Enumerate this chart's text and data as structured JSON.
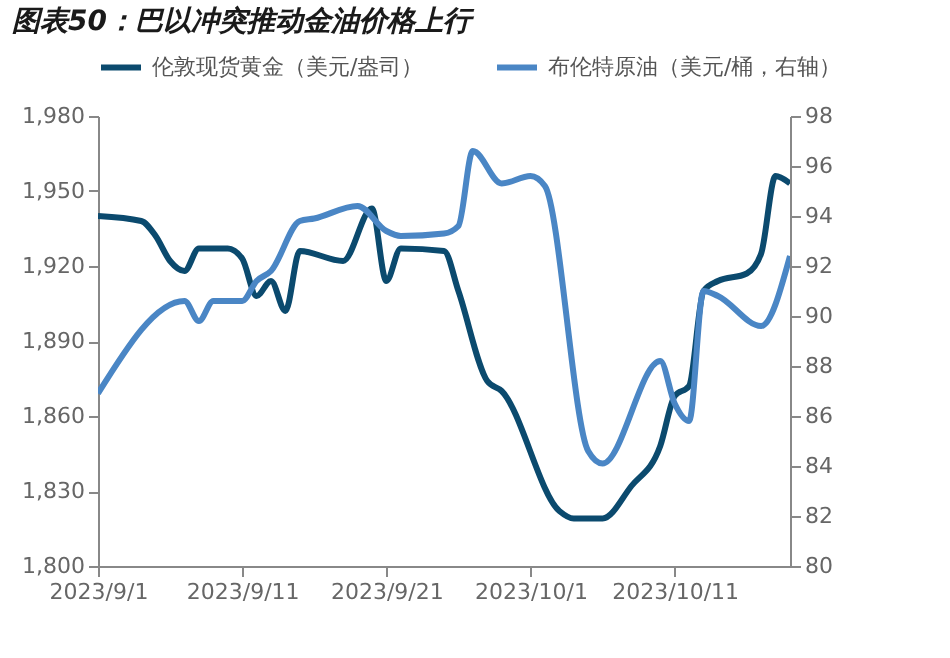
{
  "chart_data": {
    "type": "line",
    "title": "图表50：巴以冲突推动金油价格上行",
    "xlim": [
      "2023-09-01",
      "2023-10-19"
    ],
    "xticks": [
      {
        "value": "2023-09-01",
        "label": "2023/9/1"
      },
      {
        "value": "2023-09-11",
        "label": "2023/9/11"
      },
      {
        "value": "2023-09-21",
        "label": "2023/9/21"
      },
      {
        "value": "2023-10-01",
        "label": "2023/10/1"
      },
      {
        "value": "2023-10-11",
        "label": "2023/10/11"
      }
    ],
    "ylim": [
      1800,
      1980
    ],
    "yticks": [
      {
        "value": 1800,
        "label": "1,800"
      },
      {
        "value": 1830,
        "label": "1,830"
      },
      {
        "value": 1860,
        "label": "1,860"
      },
      {
        "value": 1890,
        "label": "1,890"
      },
      {
        "value": 1920,
        "label": "1,920"
      },
      {
        "value": 1950,
        "label": "1,950"
      },
      {
        "value": 1980,
        "label": "1,980"
      }
    ],
    "y2lim": [
      80,
      98
    ],
    "y2ticks": [
      80,
      82,
      84,
      86,
      88,
      90,
      92,
      94,
      96,
      98
    ],
    "grid": false,
    "legend": "top",
    "line_style": "solid",
    "series": [
      {
        "name": "伦敦现货黄金（美元/盎司）",
        "color": "#0b4a6e",
        "x": [
          "2023-09-01",
          "2023-09-04",
          "2023-09-05",
          "2023-09-06",
          "2023-09-07",
          "2023-09-08",
          "2023-09-10",
          "2023-09-11",
          "2023-09-12",
          "2023-09-13",
          "2023-09-14",
          "2023-09-15",
          "2023-09-18",
          "2023-09-20",
          "2023-09-21",
          "2023-09-22",
          "2023-09-25",
          "2023-09-26",
          "2023-09-28",
          "2023-09-29",
          "2023-10-03",
          "2023-10-04",
          "2023-10-06",
          "2023-10-08",
          "2023-10-10",
          "2023-10-11",
          "2023-10-12",
          "2023-10-13",
          "2023-10-14",
          "2023-10-16",
          "2023-10-17",
          "2023-10-18",
          "2023-10-19"
        ],
        "values": [
          1940,
          1938,
          1932,
          1922,
          1918,
          1927,
          1927,
          1923,
          1908,
          1914,
          1902,
          1926,
          1922,
          1943,
          1914,
          1927,
          1926,
          1910,
          1874,
          1870,
          1822,
          1819,
          1819,
          1832,
          1848,
          1868,
          1872,
          1910,
          1914,
          1917,
          1925,
          1956,
          1953
        ]
      },
      {
        "name": "布伦特原油（美元/桶，右轴）",
        "color": "#4a86c5",
        "axis": "y2",
        "x": [
          "2023-09-01",
          "2023-09-07",
          "2023-09-08",
          "2023-09-09",
          "2023-09-11",
          "2023-09-12",
          "2023-09-13",
          "2023-09-15",
          "2023-09-16",
          "2023-09-19",
          "2023-09-21",
          "2023-09-22",
          "2023-09-25",
          "2023-09-26",
          "2023-09-27",
          "2023-09-29",
          "2023-10-01",
          "2023-10-02",
          "2023-10-05",
          "2023-10-06",
          "2023-10-10",
          "2023-10-11",
          "2023-10-12",
          "2023-10-13",
          "2023-10-14",
          "2023-10-17",
          "2023-10-19"
        ],
        "values": [
          86.9,
          90.6,
          89.8,
          90.6,
          90.6,
          91.4,
          91.8,
          93.8,
          93.9,
          94.4,
          93.4,
          93.2,
          93.3,
          93.6,
          96.6,
          95.3,
          95.6,
          95.2,
          84.6,
          84.1,
          88.2,
          86.5,
          85.8,
          91,
          90.8,
          89.6,
          92.4
        ]
      }
    ]
  }
}
